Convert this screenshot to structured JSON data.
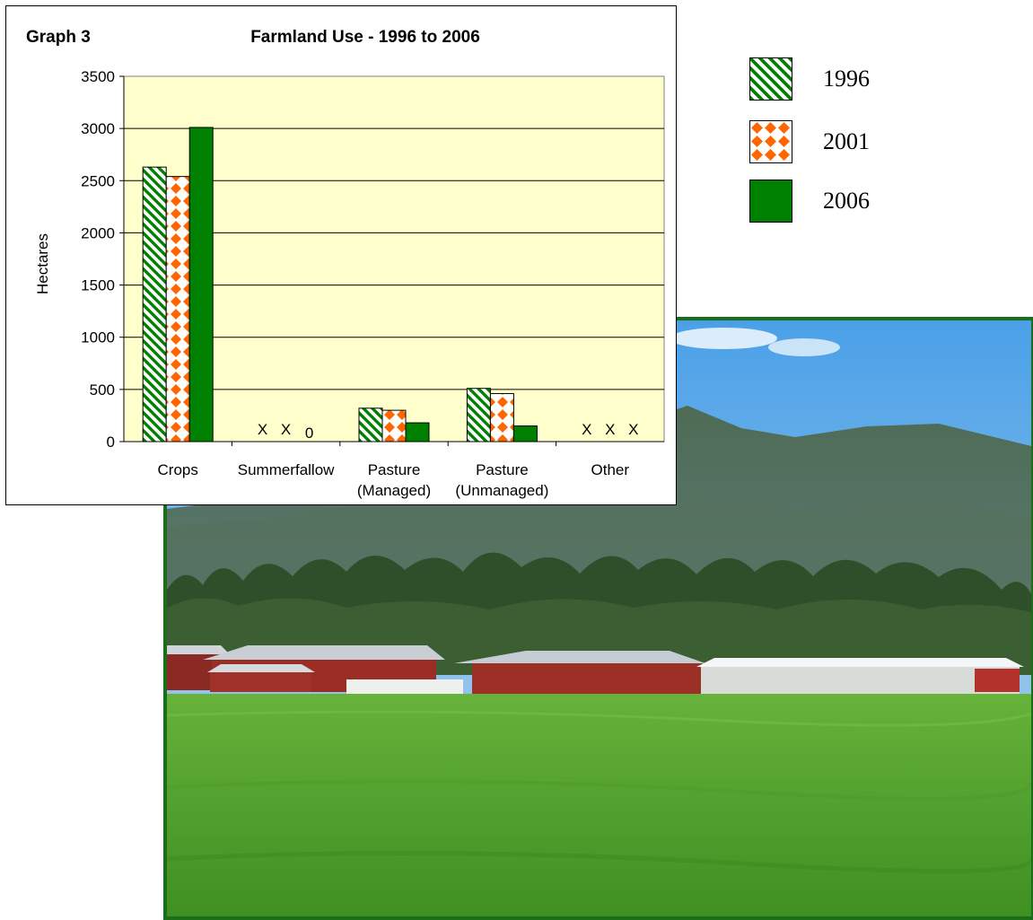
{
  "chart_data": {
    "type": "bar",
    "title": "Farmland Use - 1996 to 2006",
    "graph_label": "Graph 3",
    "ylabel": "Hectares",
    "ylim": [
      0,
      3500
    ],
    "yticks": [
      "0",
      "500",
      "1000",
      "1500",
      "2000",
      "2500",
      "3000",
      "3500"
    ],
    "categories": [
      {
        "line1": "Crops",
        "line2": ""
      },
      {
        "line1": "Summerfallow",
        "line2": ""
      },
      {
        "line1": "Pasture",
        "line2": "(Managed)"
      },
      {
        "line1": "Pasture",
        "line2": "(Unmanaged)"
      },
      {
        "line1": "Other",
        "line2": ""
      }
    ],
    "series": [
      {
        "name": "1996",
        "values": [
          2630,
          null,
          320,
          510,
          null
        ],
        "labels": [
          "",
          "X",
          "",
          "",
          "X"
        ]
      },
      {
        "name": "2001",
        "values": [
          2540,
          null,
          300,
          460,
          null
        ],
        "labels": [
          "",
          "X",
          "",
          "",
          "X"
        ]
      },
      {
        "name": "2006",
        "values": [
          3010,
          0,
          180,
          150,
          null
        ],
        "labels": [
          "",
          "0",
          "",
          "",
          "X"
        ]
      }
    ],
    "grid": true,
    "legend_position": "right",
    "colors": {
      "plot_bg": "#ffffcc",
      "dark_green": "#008000",
      "orange": "#ff6600"
    }
  },
  "legend": {
    "items": [
      "1996",
      "2001",
      "2006"
    ]
  },
  "photo": {
    "subject": "farm-landscape"
  }
}
